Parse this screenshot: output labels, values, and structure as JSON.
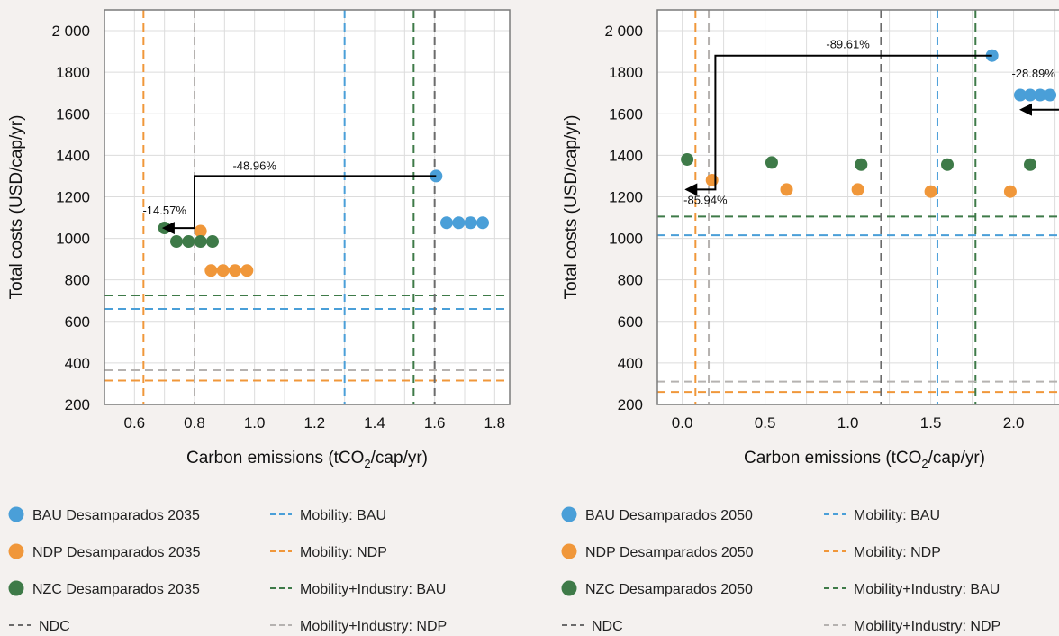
{
  "colors": {
    "bau": "#4a9fd8",
    "ndp": "#f0973a",
    "nzc": "#3e7a48",
    "ndc_line": "#6b6b6b",
    "mobility_bau": "#4a9fd8",
    "mobility_ndp": "#f0973a",
    "mob_ind_bau": "#3e7a48",
    "mob_ind_ndp": "#b5b2b0",
    "grid": "#dcdcdc",
    "plot_bg": "#ffffff"
  },
  "chart_data": [
    {
      "type": "scatter",
      "title": "",
      "xlabel": "Carbon emissions (tCO",
      "xlabel_sub": "2",
      "xlabel_tail": "/cap/yr)",
      "ylabel": "Total costs (USD/cap/yr)",
      "xlim": [
        0.5,
        1.85
      ],
      "ylim": [
        200,
        2100
      ],
      "x_ticks": [
        0.6,
        0.8,
        1.0,
        1.2,
        1.4,
        1.6,
        1.8
      ],
      "x_tick_labels": [
        "0.6",
        "0.8",
        "1.0",
        "1.2",
        "1.4",
        "1.6",
        "1.8"
      ],
      "y_ticks": [
        200,
        400,
        600,
        800,
        1000,
        1200,
        1400,
        1600,
        1800,
        2000
      ],
      "y_tick_labels": [
        "200",
        "400",
        "600",
        "800",
        "1000",
        "1200",
        "1400",
        "1600",
        "1800",
        "2 000"
      ],
      "grid": true,
      "series": [
        {
          "key": "bau",
          "name": "BAU Desamparados 2035",
          "points": [
            [
              1.605,
              1300
            ],
            [
              1.64,
              1075
            ],
            [
              1.68,
              1075
            ],
            [
              1.72,
              1075
            ],
            [
              1.76,
              1075
            ]
          ]
        },
        {
          "key": "ndp",
          "name": "NDP Desamparados 2035",
          "points": [
            [
              0.82,
              1035
            ],
            [
              0.855,
              845
            ],
            [
              0.895,
              845
            ],
            [
              0.935,
              845
            ],
            [
              0.975,
              845
            ]
          ]
        },
        {
          "key": "nzc",
          "name": "NZC Desamparados 2035",
          "points": [
            [
              0.7,
              1050
            ],
            [
              0.74,
              985
            ],
            [
              0.78,
              985
            ],
            [
              0.82,
              985
            ],
            [
              0.86,
              985
            ]
          ]
        }
      ],
      "reference_lines": [
        {
          "key": "mobility_bau",
          "orientation": "vertical",
          "value": 1.3
        },
        {
          "key": "mobility_bau",
          "orientation": "horizontal",
          "value": 660
        },
        {
          "key": "mobility_ndp",
          "orientation": "vertical",
          "value": 0.63
        },
        {
          "key": "mobility_ndp",
          "orientation": "horizontal",
          "value": 315
        },
        {
          "key": "mob_ind_bau",
          "orientation": "vertical",
          "value": 1.53
        },
        {
          "key": "mob_ind_bau",
          "orientation": "horizontal",
          "value": 725
        },
        {
          "key": "mob_ind_ndp",
          "orientation": "vertical",
          "value": 0.8
        },
        {
          "key": "mob_ind_ndp",
          "orientation": "horizontal",
          "value": 365
        },
        {
          "key": "ndc_line",
          "orientation": "vertical",
          "value": 1.6
        }
      ],
      "arrows": [
        {
          "path": [
            [
              1.605,
              1300
            ],
            [
              0.8,
              1300
            ],
            [
              0.8,
              1050
            ],
            [
              0.7,
              1050
            ]
          ]
        }
      ],
      "annotations": [
        {
          "text": "-48.96%",
          "x": 1.0,
          "y": 1330
        },
        {
          "text": "-14.57%",
          "x": 0.7,
          "y": 1115
        }
      ]
    },
    {
      "type": "scatter",
      "title": "",
      "xlabel": "Carbon emissions (tCO",
      "xlabel_sub": "2",
      "xlabel_tail": "/cap/yr)",
      "ylabel": "Total costs (USD/cap/yr)",
      "xlim": [
        -0.15,
        2.35
      ],
      "ylim": [
        200,
        2100
      ],
      "x_ticks": [
        0.0,
        0.5,
        1.0,
        1.5,
        2.0
      ],
      "x_tick_labels": [
        "0.0",
        "0.5",
        "1.0",
        "1.5",
        "2.0"
      ],
      "y_ticks": [
        200,
        400,
        600,
        800,
        1000,
        1200,
        1400,
        1600,
        1800,
        2000
      ],
      "y_tick_labels": [
        "200",
        "400",
        "600",
        "800",
        "1000",
        "1200",
        "1400",
        "1600",
        "1800",
        "2 000"
      ],
      "grid": true,
      "series": [
        {
          "key": "bau",
          "name": "BAU Desamparados 2050",
          "points": [
            [
              1.87,
              1880
            ],
            [
              2.04,
              1690
            ],
            [
              2.1,
              1690
            ],
            [
              2.16,
              1690
            ],
            [
              2.22,
              1690
            ]
          ]
        },
        {
          "key": "ndp",
          "name": "NDP Desamparados 2050",
          "points": [
            [
              0.18,
              1280
            ],
            [
              0.63,
              1235
            ],
            [
              1.06,
              1235
            ],
            [
              1.5,
              1225
            ],
            [
              1.98,
              1225
            ]
          ]
        },
        {
          "key": "nzc",
          "name": "NZC Desamparados 2050",
          "points": [
            [
              0.03,
              1380
            ],
            [
              0.54,
              1365
            ],
            [
              1.08,
              1355
            ],
            [
              1.6,
              1355
            ],
            [
              2.1,
              1355
            ]
          ]
        }
      ],
      "reference_lines": [
        {
          "key": "mobility_bau",
          "orientation": "vertical",
          "value": 1.54
        },
        {
          "key": "mobility_bau",
          "orientation": "horizontal",
          "value": 1015
        },
        {
          "key": "mobility_ndp",
          "orientation": "vertical",
          "value": 0.08
        },
        {
          "key": "mobility_ndp",
          "orientation": "horizontal",
          "value": 260
        },
        {
          "key": "mob_ind_bau",
          "orientation": "vertical",
          "value": 1.77
        },
        {
          "key": "mob_ind_bau",
          "orientation": "horizontal",
          "value": 1105
        },
        {
          "key": "mob_ind_ndp",
          "orientation": "vertical",
          "value": 0.16
        },
        {
          "key": "mob_ind_ndp",
          "orientation": "horizontal",
          "value": 310
        },
        {
          "key": "ndc_line",
          "orientation": "vertical",
          "value": 1.2
        }
      ],
      "arrows": [
        {
          "path": [
            [
              1.87,
              1880
            ],
            [
              0.2,
              1880
            ],
            [
              0.2,
              1235
            ],
            [
              0.03,
              1235
            ]
          ]
        },
        {
          "path": [
            [
              2.28,
              1620
            ],
            [
              2.05,
              1620
            ]
          ]
        }
      ],
      "annotations": [
        {
          "text": "-89.61%",
          "x": 1.0,
          "y": 1915
        },
        {
          "text": "-28.89%",
          "x": 2.12,
          "y": 1775
        },
        {
          "text": "-85.94%",
          "x": 0.14,
          "y": 1165
        }
      ]
    }
  ],
  "legends": [
    {
      "items": [
        {
          "key": "bau",
          "shape": "dot",
          "label": "BAU Desamparados 2035"
        },
        {
          "key": "mobility_bau",
          "shape": "dash",
          "label": "Mobility: BAU"
        },
        {
          "key": "ndp",
          "shape": "dot",
          "label": "NDP Desamparados 2035"
        },
        {
          "key": "mobility_ndp",
          "shape": "dash",
          "label": "Mobility: NDP"
        },
        {
          "key": "nzc",
          "shape": "dot",
          "label": "NZC Desamparados 2035"
        },
        {
          "key": "mob_ind_bau",
          "shape": "dash",
          "label": "Mobility+Industry: BAU"
        },
        {
          "key": "ndc_line",
          "shape": "dash",
          "label": "NDC"
        },
        {
          "key": "mob_ind_ndp",
          "shape": "dash",
          "label": "Mobility+Industry: NDP"
        }
      ]
    },
    {
      "items": [
        {
          "key": "bau",
          "shape": "dot",
          "label": "BAU Desamparados 2050"
        },
        {
          "key": "mobility_bau",
          "shape": "dash",
          "label": "Mobility: BAU"
        },
        {
          "key": "ndp",
          "shape": "dot",
          "label": "NDP Desamparados 2050"
        },
        {
          "key": "mobility_ndp",
          "shape": "dash",
          "label": "Mobility: NDP"
        },
        {
          "key": "nzc",
          "shape": "dot",
          "label": "NZC Desamparados 2050"
        },
        {
          "key": "mob_ind_bau",
          "shape": "dash",
          "label": "Mobility+Industry: BAU"
        },
        {
          "key": "ndc_line",
          "shape": "dash",
          "label": "NDC"
        },
        {
          "key": "mob_ind_ndp",
          "shape": "dash",
          "label": "Mobility+Industry: NDP"
        }
      ]
    }
  ]
}
